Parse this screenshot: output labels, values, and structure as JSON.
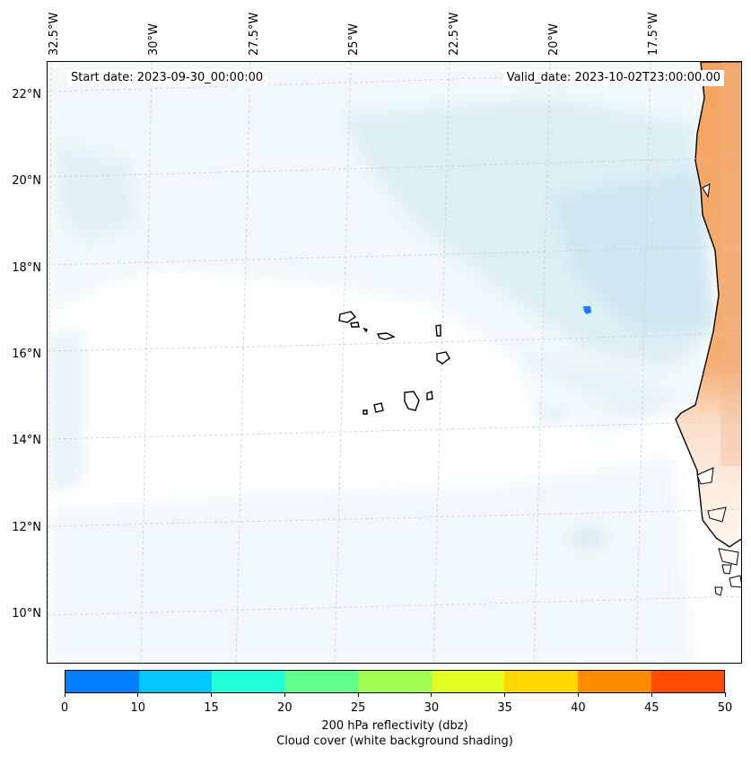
{
  "map": {
    "start_date": "Start date: 2023-09-30_00:00:00",
    "valid_date": "Valid_date: 2023-10-02T23:00:00.00",
    "lon_labels": [
      "32.5°W",
      "30°W",
      "27.5°W",
      "25°W",
      "22.5°W",
      "20°W",
      "17.5°W"
    ],
    "lat_labels": [
      "22°N",
      "20°N",
      "18°N",
      "16°N",
      "14°N",
      "12°N",
      "10°N"
    ],
    "colors": {
      "cloud": "#aed8e6",
      "land_fill": "#f4a460",
      "coast": "#000000",
      "grid": "#c8c8c8",
      "reflectivity_cell": "#1a7fff"
    }
  },
  "colorbar": {
    "ticks": [
      "0",
      "10",
      "15",
      "20",
      "25",
      "30",
      "35",
      "40",
      "45",
      "50"
    ],
    "colors": [
      "#0080ff",
      "#00c8ff",
      "#20ffd8",
      "#60ff8c",
      "#a0ff50",
      "#e0ff20",
      "#ffd800",
      "#ff8c00",
      "#ff4c00"
    ],
    "label": "200 hPa reflectivity (dbz)",
    "sublabel": "Cloud cover (white background shading)"
  }
}
